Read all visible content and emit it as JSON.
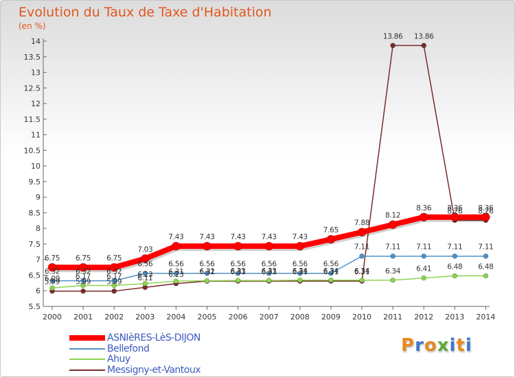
{
  "title": "Evolution du Taux de Taxe d'Habitation",
  "unit_label": "(en %)",
  "brand": {
    "text": "Proxiti",
    "colors": [
      "#e8891c",
      "#3c78c8",
      "#e8891c",
      "#60a838",
      "#3c78c8",
      "#e8891c",
      "#3c78c8"
    ]
  },
  "chart_data": {
    "type": "line",
    "x": [
      "2000",
      "2001",
      "2002",
      "2003",
      "2004",
      "2005",
      "2006",
      "2007",
      "2008",
      "2009",
      "2010",
      "2011",
      "2012",
      "2013",
      "2014"
    ],
    "ylim": [
      5.5,
      14
    ],
    "yticks": [
      "5.5",
      "6",
      "6.5",
      "7",
      "7.5",
      "8",
      "8.5",
      "9",
      "9.5",
      "10",
      "10.5",
      "11",
      "11.5",
      "12",
      "12.5",
      "13",
      "13.5",
      "14"
    ],
    "grid": false,
    "legend_position": "bottom-left",
    "series": [
      {
        "name": "ASNIèRES-LèS-DIJON",
        "color": "#ff0000",
        "values": [
          6.75,
          6.75,
          6.75,
          7.03,
          7.43,
          7.43,
          7.43,
          7.43,
          7.43,
          7.65,
          7.88,
          8.12,
          8.36,
          8.36,
          8.36
        ],
        "labels": [
          "6.75",
          "6.75",
          "6.75",
          "7.03",
          "7.43",
          "7.43",
          "7.43",
          "7.43",
          "7.43",
          "7.65",
          "7.88",
          "8.12",
          "8.36",
          "8.36",
          "8.36"
        ]
      },
      {
        "name": "Bellefond",
        "color": "#4f91c7",
        "values": [
          6.32,
          6.32,
          6.32,
          6.56,
          6.56,
          6.56,
          6.56,
          6.56,
          6.56,
          6.56,
          7.11,
          7.11,
          7.11,
          7.11,
          7.11
        ],
        "labels": [
          "6.32",
          "6.32",
          "6.32",
          "6.56",
          "6.56",
          "6.56",
          "6.56",
          "6.56",
          "6.56",
          "6.56",
          "7.11",
          "7.11",
          "7.11",
          "7.11",
          "7.11"
        ]
      },
      {
        "name": "Ahuy",
        "color": "#8ed34f",
        "values": [
          6.09,
          6.17,
          6.17,
          6.23,
          6.31,
          6.32,
          6.33,
          6.33,
          6.34,
          6.34,
          6.34,
          6.34,
          6.41,
          6.48,
          6.48
        ],
        "labels": [
          "6.09",
          "6.17",
          "6.17",
          "6.23",
          "6.31",
          "6.32",
          "6.33",
          "6.33",
          "6.34",
          "6.34",
          "6.34",
          "6.34",
          "6.41",
          "6.48",
          "6.48"
        ]
      },
      {
        "name": "Messigny-et-Vantoux",
        "color": "#7a2a2a",
        "values": [
          5.99,
          5.99,
          5.99,
          6.11,
          6.23,
          6.31,
          6.31,
          6.31,
          6.31,
          6.31,
          6.31,
          13.86,
          13.86,
          8.26,
          8.26
        ],
        "labels": [
          "5.99",
          "5.99",
          "5.99",
          "6.11",
          "6.23",
          "6.31",
          "6.31",
          "6.31",
          "6.31",
          "6.31",
          "6.31",
          "13.86",
          "13.86",
          "8.26",
          "8.26"
        ]
      }
    ]
  }
}
